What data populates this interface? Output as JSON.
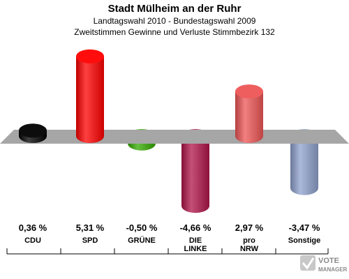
{
  "header": {
    "title": "Stadt Mülheim an der Ruhr",
    "subtitle1": "Landtagswahl 2010 - Bundestagswahl 2009",
    "subtitle2": "Zweitstimmen Gewinne und Verluste Stimmbezirk 132"
  },
  "chart_data": {
    "type": "bar",
    "title": "Stadt Mülheim an der Ruhr",
    "categories": [
      [
        "CDU"
      ],
      [
        "SPD"
      ],
      [
        "GRÜNE"
      ],
      [
        "DIE",
        "LINKE"
      ],
      [
        "pro",
        "NRW"
      ],
      [
        "Sonstige"
      ]
    ],
    "values": [
      0.36,
      5.31,
      -0.5,
      -4.66,
      2.97,
      -3.47
    ],
    "value_labels": [
      "0,36 %",
      "5,31 %",
      "-0,50 %",
      "-4,66 %",
      "2,97 %",
      "-3,47 %"
    ],
    "colors": [
      "#000000",
      "#ff0000",
      "#33aa00",
      "#b0154a",
      "#ee5555",
      "#8ea0cc"
    ],
    "ylim": [
      -5,
      5.5
    ],
    "grid": false,
    "legend": "none"
  },
  "watermark": {
    "line1": "VOTE",
    "line2": "MANAGER"
  }
}
